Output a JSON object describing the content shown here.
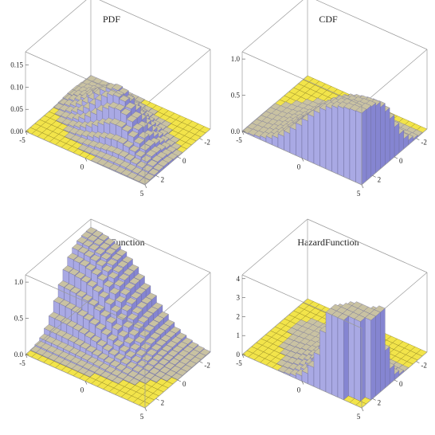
{
  "colors": {
    "floor": "#f2e44a",
    "floor_edge": "#8a7f20",
    "bar_top": "#c9c2a2",
    "bar_side_light": "#a9a9e4",
    "bar_side_dark": "#8585d1",
    "bar_edge": "#6a6a9a",
    "box": "#9a9a9a"
  },
  "chart_data": [
    {
      "type": "bar3d",
      "title": "PDF",
      "function": "pdf",
      "x_range": [
        -5,
        5
      ],
      "y_range": [
        -3,
        3
      ],
      "zlim": [
        0,
        0.18
      ],
      "z_ticks": [
        "0.00",
        "0.05",
        "0.10",
        "0.15"
      ],
      "x_ticks": [
        "-5",
        "0",
        "5"
      ],
      "y_ticks": [
        "2",
        "0",
        "-2"
      ],
      "grid": [
        20,
        14
      ],
      "grid_on": false
    },
    {
      "type": "bar3d",
      "title": "CDF",
      "function": "cdf",
      "x_range": [
        -5,
        5
      ],
      "y_range": [
        -3,
        3
      ],
      "zlim": [
        0,
        1.1
      ],
      "z_ticks": [
        "0.0",
        "0.5",
        "1.0"
      ],
      "x_ticks": [
        "-5",
        "0",
        "5"
      ],
      "y_ticks": [
        "2",
        "0",
        "-2"
      ],
      "grid": [
        20,
        14
      ],
      "grid_on": false
    },
    {
      "type": "bar3d",
      "title": "SurvivalFunction",
      "function": "survival",
      "x_range": [
        -5,
        5
      ],
      "y_range": [
        -3,
        3
      ],
      "zlim": [
        0,
        1.1
      ],
      "z_ticks": [
        "0.0",
        "0.5",
        "1.0"
      ],
      "x_ticks": [
        "-5",
        "0",
        "5"
      ],
      "y_ticks": [
        "2",
        "0",
        "-2"
      ],
      "grid": [
        20,
        14
      ],
      "grid_on": false
    },
    {
      "type": "bar3d",
      "title": "HazardFunction",
      "function": "hazard",
      "x_range": [
        -5,
        5
      ],
      "y_range": [
        -3,
        3
      ],
      "zlim": [
        0,
        4.2
      ],
      "z_ticks": [
        "0",
        "1",
        "2",
        "3",
        "4"
      ],
      "x_ticks": [
        "-5",
        "0",
        "5"
      ],
      "y_ticks": [
        "2",
        "0",
        "-2"
      ],
      "grid": [
        20,
        14
      ],
      "grid_on": false
    }
  ]
}
